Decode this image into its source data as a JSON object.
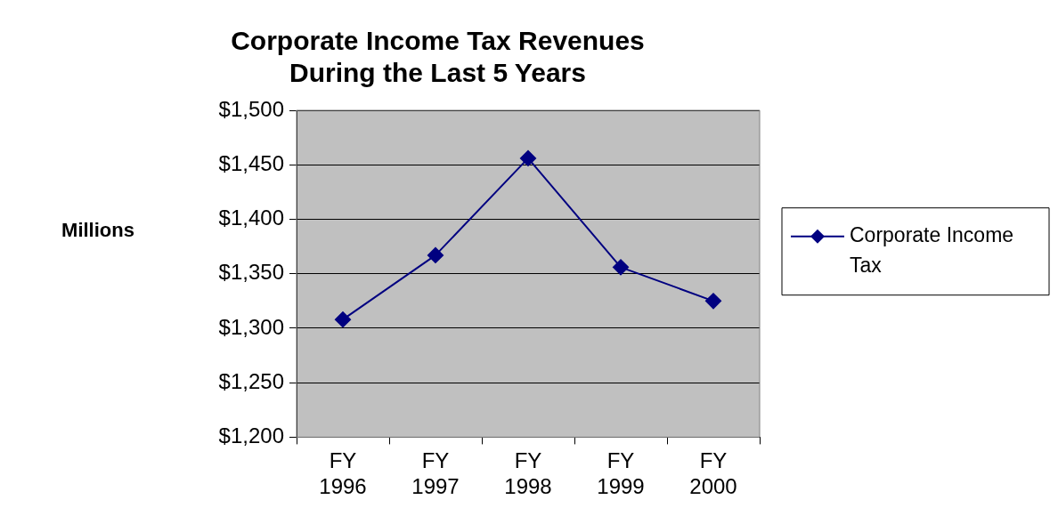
{
  "chart_data": {
    "type": "line",
    "title": "Corporate Income Tax Revenues\nDuring the Last 5 Years",
    "ylabel": "Millions",
    "categories": [
      "FY 1996",
      "FY 1997",
      "FY 1998",
      "FY 1999",
      "FY 2000"
    ],
    "series": [
      {
        "name": "Corporate Income Tax",
        "color": "#000080",
        "values": [
          1308,
          1367,
          1456,
          1356,
          1325
        ]
      }
    ],
    "ylim": [
      1200,
      1500
    ],
    "yticks": [
      {
        "value": 1200,
        "label": "$1,200"
      },
      {
        "value": 1250,
        "label": "$1,250"
      },
      {
        "value": 1300,
        "label": "$1,300"
      },
      {
        "value": 1350,
        "label": "$1,350"
      },
      {
        "value": 1400,
        "label": "$1,400"
      },
      {
        "value": 1450,
        "label": "$1,450"
      },
      {
        "value": 1500,
        "label": "$1,500"
      }
    ],
    "grid": "y",
    "legend": "right",
    "marker": "diamond",
    "line_style": "solid"
  }
}
